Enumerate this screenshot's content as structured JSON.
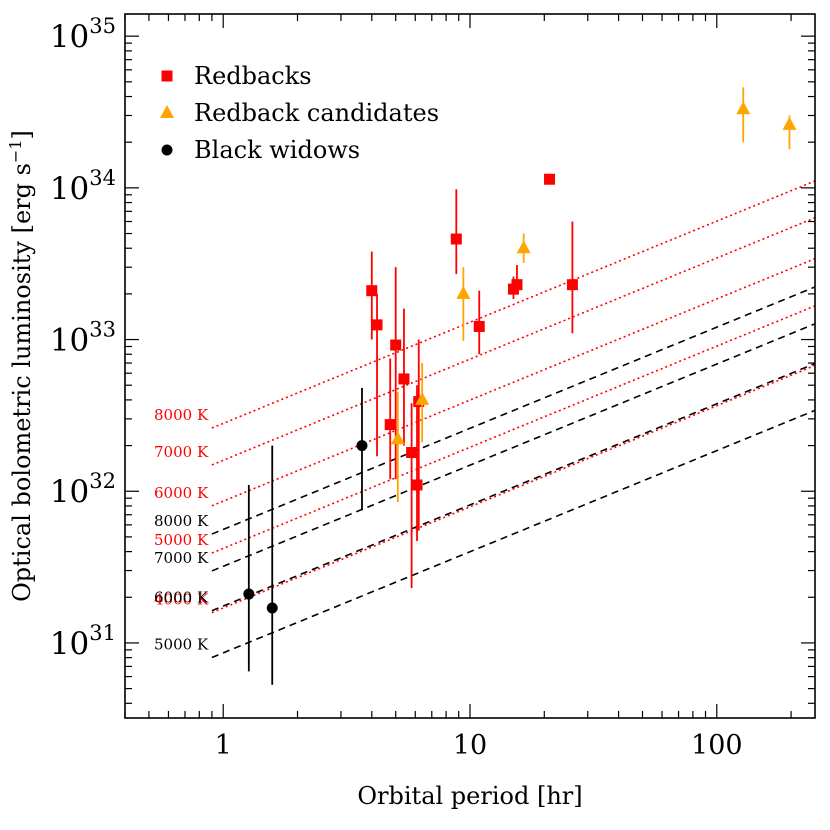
{
  "chart_data": {
    "type": "scatter",
    "xscale": "log",
    "yscale": "log",
    "xlim": [
      0.4,
      250
    ],
    "ylim": [
      3.2e+30,
      1.4e+35
    ],
    "xlabel": "Orbital period [hr]",
    "ylabel": "Optical bolometric luminosity [erg s",
    "ylabel_sup": "−1",
    "ylabel_end": "]",
    "x_ticks": [
      {
        "value": 1,
        "label": "1"
      },
      {
        "value": 10,
        "label": "10"
      },
      {
        "value": 100,
        "label": "100"
      }
    ],
    "y_ticks": [
      {
        "value": 1e+31,
        "base": "10",
        "exp": "31"
      },
      {
        "value": 1e+32,
        "base": "10",
        "exp": "32"
      },
      {
        "value": 1e+33,
        "base": "10",
        "exp": "33"
      },
      {
        "value": 1e+34,
        "base": "10",
        "exp": "34"
      },
      {
        "value": 1e+35,
        "base": "10",
        "exp": "35"
      }
    ],
    "legend_position": "top-left",
    "series": [
      {
        "name": "Redbacks",
        "marker": "square",
        "color": "#ff0000",
        "points": [
          {
            "x": 4.0,
            "y": 2.1e+33,
            "ylo": 1e+33,
            "yhi": 3.8e+33
          },
          {
            "x": 4.2,
            "y": 1.25e+33,
            "ylo": 1.7e+32,
            "yhi": 2e+33
          },
          {
            "x": 4.75,
            "y": 2.75e+32,
            "ylo": 1.2e+32,
            "yhi": 7.5e+32
          },
          {
            "x": 5.0,
            "y": 9.2e+32,
            "ylo": 1.2e+32,
            "yhi": 3e+33
          },
          {
            "x": 5.4,
            "y": 5.5e+32,
            "ylo": 2e+32,
            "yhi": 1.6e+33
          },
          {
            "x": 5.8,
            "y": 1.8e+32,
            "ylo": 2.3e+31,
            "yhi": 3.8e+32
          },
          {
            "x": 6.1,
            "y": 1.1e+32,
            "ylo": 4.7e+31,
            "yhi": 5e+32
          },
          {
            "x": 6.2,
            "y": 3.9e+32,
            "ylo": 5.5e+31,
            "yhi": 1e+33
          },
          {
            "x": 8.8,
            "y": 4.6e+33,
            "ylo": 2.7e+33,
            "yhi": 9.8e+33
          },
          {
            "x": 10.9,
            "y": 1.22e+33,
            "ylo": 8e+32,
            "yhi": 2.1e+33
          },
          {
            "x": 15.0,
            "y": 2.15e+33,
            "ylo": 1.85e+33,
            "yhi": 2.6e+33
          },
          {
            "x": 15.5,
            "y": 2.3e+33,
            "ylo": 2e+33,
            "yhi": 3.1e+33
          },
          {
            "x": 21.0,
            "y": 1.14e+34
          },
          {
            "x": 26.0,
            "y": 2.3e+33,
            "ylo": 1.1e+33,
            "yhi": 6e+33
          }
        ]
      },
      {
        "name": "Redback candidates",
        "marker": "triangle",
        "color": "#ffa500",
        "points": [
          {
            "x": 5.1,
            "y": 2.2e+32,
            "ylo": 8.5e+31,
            "yhi": 4.5e+32
          },
          {
            "x": 6.4,
            "y": 4e+32,
            "ylo": 2.1e+32,
            "yhi": 7e+32
          },
          {
            "x": 9.4,
            "y": 2e+33,
            "ylo": 9.8e+32,
            "yhi": 3e+33
          },
          {
            "x": 16.5,
            "y": 4e+33,
            "ylo": 3.2e+33,
            "yhi": 5e+33
          },
          {
            "x": 128,
            "y": 3.3e+34,
            "ylo": 2e+34,
            "yhi": 4.6e+34
          },
          {
            "x": 197,
            "y": 2.6e+34,
            "ylo": 1.8e+34,
            "yhi": 3e+34
          }
        ]
      },
      {
        "name": "Black widows",
        "marker": "circle",
        "color": "#000000",
        "points": [
          {
            "x": 1.27,
            "y": 2.1e+31,
            "ylo": 6.5e+30,
            "yhi": 1.1e+32
          },
          {
            "x": 1.58,
            "y": 1.7e+31,
            "ylo": 5.3e+30,
            "yhi": 2e+32
          },
          {
            "x": 3.65,
            "y": 2e+32,
            "ylo": 7.5e+31,
            "yhi": 4.8e+32
          }
        ]
      }
    ],
    "isotherms": [
      {
        "label": "8000 K",
        "color": "#ff0000",
        "style": "dotted",
        "y_at_1hr": 2.8e+32
      },
      {
        "label": "7000 K",
        "color": "#ff0000",
        "style": "dotted",
        "y_at_1hr": 1.6e+32
      },
      {
        "label": "6000 K",
        "color": "#ff0000",
        "style": "dotted",
        "y_at_1hr": 8.6e+31
      },
      {
        "label": "5000 K",
        "color": "#ff0000",
        "style": "dotted",
        "y_at_1hr": 4.2e+31
      },
      {
        "label": "4000 K",
        "color": "#ff0000",
        "style": "dotted",
        "y_at_1hr": 1.7e+31
      },
      {
        "label": "8000 K",
        "color": "#000000",
        "style": "dashed",
        "y_at_1hr": 5.6e+31
      },
      {
        "label": "7000 K",
        "color": "#000000",
        "style": "dashed",
        "y_at_1hr": 3.2e+31
      },
      {
        "label": "6000 K",
        "color": "#000000",
        "style": "dashed",
        "y_at_1hr": 1.75e+31
      },
      {
        "label": "5000 K",
        "color": "#000000",
        "style": "dashed",
        "y_at_1hr": 8.6e+30
      }
    ]
  }
}
